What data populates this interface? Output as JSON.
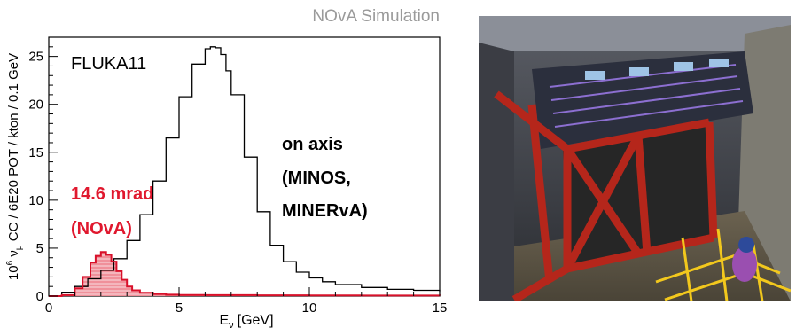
{
  "figure_tag": "NOvA Simulation",
  "chart_data": {
    "type": "line",
    "xlabel": "E",
    "xlabel_sub": "ν",
    "xlabel_unit": "[GeV]",
    "ylabel_parts": [
      "10",
      "6",
      " ν",
      "μ",
      " CC / 6E20 POT / kton / 0.1 GeV"
    ],
    "xlim": [
      0,
      15
    ],
    "ylim": [
      0,
      27
    ],
    "xticks": [
      0,
      5,
      10,
      15
    ],
    "yticks": [
      0,
      5,
      10,
      15,
      20,
      25
    ],
    "grid": false,
    "annotations": {
      "model": "FLUKA11",
      "on_axis": [
        "on axis",
        "(MINOS,",
        "MINERvA)"
      ],
      "off_axis": [
        "14.6 mrad",
        "(NOvA)"
      ]
    },
    "series": [
      {
        "name": "on axis",
        "color": "#000000",
        "style": "step",
        "x": [
          0.0,
          0.5,
          1.0,
          1.5,
          2.0,
          2.5,
          3.0,
          3.5,
          4.0,
          4.5,
          5.0,
          5.5,
          6.0,
          6.2,
          6.4,
          6.6,
          6.8,
          7.0,
          7.5,
          8.0,
          8.5,
          9.0,
          9.5,
          10.0,
          10.5,
          11.0,
          12.0,
          13.0,
          14.0,
          15.0
        ],
        "y": [
          0.0,
          0.4,
          1.0,
          1.8,
          2.7,
          3.9,
          5.8,
          8.5,
          12.0,
          16.5,
          20.8,
          24.2,
          25.8,
          26.0,
          25.9,
          25.2,
          23.5,
          21.0,
          14.5,
          8.8,
          5.3,
          3.6,
          2.5,
          1.9,
          1.5,
          1.2,
          0.9,
          0.7,
          0.6,
          0.5
        ]
      },
      {
        "name": "14.6 mrad",
        "color": "#d8102a",
        "fill": "#f4b6bd",
        "style": "step",
        "x": [
          0.0,
          0.5,
          1.0,
          1.3,
          1.6,
          1.8,
          2.0,
          2.2,
          2.4,
          2.6,
          2.8,
          3.0,
          3.2,
          3.5,
          4.0,
          4.5,
          5.0,
          6.0,
          8.0,
          10.0,
          12.0,
          15.0
        ],
        "y": [
          0.0,
          0.1,
          0.8,
          2.0,
          3.5,
          4.2,
          4.6,
          4.3,
          3.6,
          2.6,
          1.7,
          1.0,
          0.6,
          0.35,
          0.2,
          0.15,
          0.12,
          0.1,
          0.08,
          0.07,
          0.06,
          0.05
        ]
      }
    ]
  },
  "photo": {
    "alt": "photo"
  }
}
